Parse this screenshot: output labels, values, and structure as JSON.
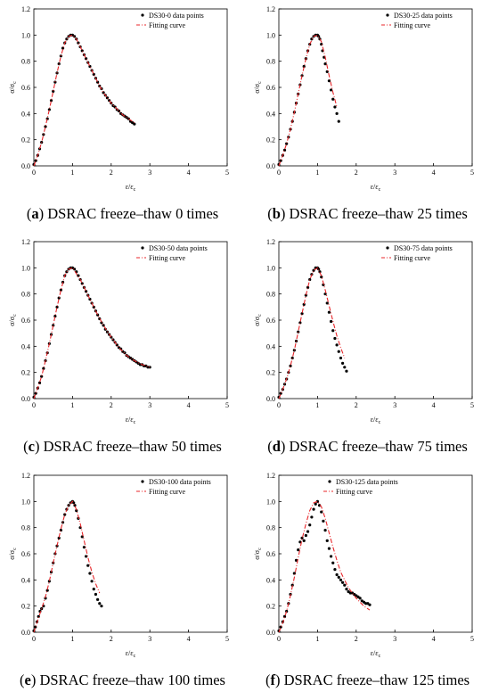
{
  "chart_data": [
    {
      "id": "a",
      "type": "scatter",
      "caption_letter": "a",
      "caption_text": "DSRAC freeze–thaw 0 times",
      "xlabel": "ε/ε",
      "xlabel_sub": "c",
      "ylabel": "σ/σ",
      "ylabel_sub": "c",
      "xlim": [
        0,
        5
      ],
      "ylim": [
        0,
        1.2
      ],
      "xticks": [
        "0",
        "1",
        "2",
        "3",
        "4",
        "5"
      ],
      "yticks": [
        "0.0",
        "0.2",
        "0.4",
        "0.6",
        "0.8",
        "1.0",
        "1.2"
      ],
      "legend": {
        "position": "top-right",
        "points_label": "DS30-0 data points",
        "curve_label": "Fitting curve"
      },
      "series": [
        {
          "name": "DS30-0 data points",
          "style": "points",
          "x": [
            0.0,
            0.05,
            0.1,
            0.15,
            0.2,
            0.25,
            0.3,
            0.35,
            0.4,
            0.45,
            0.5,
            0.55,
            0.6,
            0.65,
            0.7,
            0.75,
            0.8,
            0.85,
            0.9,
            0.95,
            1.0,
            1.05,
            1.1,
            1.15,
            1.2,
            1.25,
            1.3,
            1.35,
            1.4,
            1.45,
            1.5,
            1.55,
            1.6,
            1.65,
            1.7,
            1.75,
            1.8,
            1.85,
            1.9,
            1.95,
            2.0,
            2.05,
            2.1,
            2.15,
            2.2,
            2.25,
            2.3,
            2.35,
            2.4,
            2.45,
            2.5,
            2.55,
            2.6
          ],
          "y": [
            0.01,
            0.04,
            0.08,
            0.13,
            0.18,
            0.24,
            0.3,
            0.36,
            0.43,
            0.5,
            0.57,
            0.64,
            0.71,
            0.78,
            0.84,
            0.9,
            0.94,
            0.97,
            0.99,
            1.0,
            1.0,
            0.99,
            0.97,
            0.94,
            0.91,
            0.88,
            0.85,
            0.82,
            0.79,
            0.76,
            0.73,
            0.7,
            0.67,
            0.64,
            0.61,
            0.59,
            0.56,
            0.54,
            0.52,
            0.5,
            0.48,
            0.46,
            0.45,
            0.43,
            0.42,
            0.4,
            0.39,
            0.38,
            0.37,
            0.36,
            0.34,
            0.33,
            0.32
          ]
        },
        {
          "name": "Fitting curve",
          "style": "line",
          "x": [
            0.0,
            0.1,
            0.2,
            0.3,
            0.4,
            0.5,
            0.6,
            0.7,
            0.8,
            0.9,
            1.0,
            1.1,
            1.2,
            1.3,
            1.4,
            1.5,
            1.6,
            1.7,
            1.8,
            1.9,
            2.0,
            2.1,
            2.2,
            2.3,
            2.4,
            2.5,
            2.6
          ],
          "y": [
            0.0,
            0.08,
            0.18,
            0.3,
            0.43,
            0.57,
            0.71,
            0.84,
            0.94,
            0.99,
            1.0,
            0.97,
            0.91,
            0.85,
            0.79,
            0.73,
            0.67,
            0.61,
            0.56,
            0.52,
            0.48,
            0.45,
            0.42,
            0.39,
            0.37,
            0.35,
            0.33
          ]
        }
      ]
    },
    {
      "id": "b",
      "type": "scatter",
      "caption_letter": "b",
      "caption_text": "DSRAC freeze–thaw 25 times",
      "xlabel": "ε/ε",
      "xlabel_sub": "c",
      "ylabel": "σ/σ",
      "ylabel_sub": "c",
      "xlim": [
        0,
        5
      ],
      "ylim": [
        0,
        1.2
      ],
      "xticks": [
        "0",
        "1",
        "2",
        "3",
        "4",
        "5"
      ],
      "yticks": [
        "0.0",
        "0.2",
        "0.4",
        "0.6",
        "0.8",
        "1.0",
        "1.2"
      ],
      "legend": {
        "position": "top-right",
        "points_label": "DS30-25 data points",
        "curve_label": "Fitting curve"
      },
      "series": [
        {
          "name": "DS30-25 data points",
          "style": "points",
          "x": [
            0.0,
            0.05,
            0.1,
            0.15,
            0.2,
            0.25,
            0.3,
            0.35,
            0.4,
            0.45,
            0.5,
            0.55,
            0.6,
            0.65,
            0.7,
            0.75,
            0.8,
            0.85,
            0.9,
            0.95,
            1.0,
            1.03,
            1.06,
            1.1,
            1.13,
            1.17,
            1.2,
            1.25,
            1.3,
            1.35,
            1.4,
            1.45,
            1.5,
            1.55
          ],
          "y": [
            0.01,
            0.04,
            0.08,
            0.12,
            0.17,
            0.22,
            0.28,
            0.34,
            0.41,
            0.48,
            0.55,
            0.62,
            0.69,
            0.76,
            0.82,
            0.88,
            0.93,
            0.97,
            0.99,
            1.0,
            1.0,
            0.99,
            0.97,
            0.93,
            0.88,
            0.83,
            0.78,
            0.72,
            0.65,
            0.58,
            0.51,
            0.45,
            0.4,
            0.34
          ]
        },
        {
          "name": "Fitting curve",
          "style": "line",
          "x": [
            0.0,
            0.1,
            0.2,
            0.3,
            0.4,
            0.5,
            0.6,
            0.7,
            0.8,
            0.9,
            1.0,
            1.1,
            1.2,
            1.3,
            1.4,
            1.5
          ],
          "y": [
            0.0,
            0.08,
            0.17,
            0.28,
            0.41,
            0.55,
            0.69,
            0.82,
            0.93,
            0.99,
            1.0,
            0.95,
            0.83,
            0.69,
            0.56,
            0.45
          ]
        }
      ]
    },
    {
      "id": "c",
      "type": "scatter",
      "caption_letter": "c",
      "caption_text": "DSRAC freeze–thaw 50 times",
      "xlabel": "ε/ε",
      "xlabel_sub": "c",
      "ylabel": "σ/σ",
      "ylabel_sub": "c",
      "xlim": [
        0,
        5
      ],
      "ylim": [
        0,
        1.2
      ],
      "xticks": [
        "0",
        "1",
        "2",
        "3",
        "4",
        "5"
      ],
      "yticks": [
        "0.0",
        "0.2",
        "0.4",
        "0.6",
        "0.8",
        "1.0",
        "1.2"
      ],
      "legend": {
        "position": "top-right",
        "points_label": "DS30-50 data points",
        "curve_label": "Fitting curve"
      },
      "series": [
        {
          "name": "DS30-50 data points",
          "style": "points",
          "x": [
            0.0,
            0.05,
            0.1,
            0.15,
            0.2,
            0.25,
            0.3,
            0.35,
            0.4,
            0.45,
            0.5,
            0.55,
            0.6,
            0.65,
            0.7,
            0.75,
            0.8,
            0.85,
            0.9,
            0.95,
            1.0,
            1.05,
            1.1,
            1.15,
            1.2,
            1.25,
            1.3,
            1.35,
            1.4,
            1.45,
            1.5,
            1.55,
            1.6,
            1.65,
            1.7,
            1.75,
            1.8,
            1.85,
            1.9,
            1.95,
            2.0,
            2.05,
            2.1,
            2.15,
            2.2,
            2.25,
            2.3,
            2.35,
            2.4,
            2.45,
            2.5,
            2.55,
            2.6,
            2.65,
            2.7,
            2.75,
            2.8,
            2.85,
            2.9,
            2.95,
            3.0
          ],
          "y": [
            0.01,
            0.04,
            0.08,
            0.12,
            0.17,
            0.23,
            0.29,
            0.35,
            0.42,
            0.49,
            0.56,
            0.63,
            0.7,
            0.77,
            0.83,
            0.89,
            0.94,
            0.97,
            0.99,
            1.0,
            1.0,
            0.99,
            0.97,
            0.94,
            0.91,
            0.88,
            0.85,
            0.82,
            0.79,
            0.76,
            0.73,
            0.7,
            0.67,
            0.64,
            0.61,
            0.58,
            0.56,
            0.53,
            0.51,
            0.49,
            0.47,
            0.45,
            0.43,
            0.41,
            0.39,
            0.38,
            0.36,
            0.35,
            0.33,
            0.32,
            0.31,
            0.3,
            0.29,
            0.28,
            0.27,
            0.26,
            0.26,
            0.25,
            0.25,
            0.24,
            0.24
          ]
        },
        {
          "name": "Fitting curve",
          "style": "line",
          "x": [
            0.0,
            0.1,
            0.2,
            0.3,
            0.4,
            0.5,
            0.6,
            0.7,
            0.8,
            0.9,
            1.0,
            1.2,
            1.4,
            1.6,
            1.8,
            2.0,
            2.2,
            2.4,
            2.6,
            2.8,
            3.0
          ],
          "y": [
            0.0,
            0.08,
            0.17,
            0.29,
            0.42,
            0.56,
            0.7,
            0.83,
            0.94,
            0.99,
            1.0,
            0.91,
            0.79,
            0.67,
            0.56,
            0.47,
            0.39,
            0.33,
            0.29,
            0.26,
            0.24
          ]
        }
      ]
    },
    {
      "id": "d",
      "type": "scatter",
      "caption_letter": "d",
      "caption_text": "DSRAC freeze–thaw 75 times",
      "xlabel": "ε/ε",
      "xlabel_sub": "c",
      "ylabel": "σ/σ",
      "ylabel_sub": "c",
      "xlim": [
        0,
        5
      ],
      "ylim": [
        0,
        1.2
      ],
      "xticks": [
        "0",
        "1",
        "2",
        "3",
        "4",
        "5"
      ],
      "yticks": [
        "0.0",
        "0.2",
        "0.4",
        "0.6",
        "0.8",
        "1.0",
        "1.2"
      ],
      "legend": {
        "position": "top-right",
        "points_label": "DS30-75 data points",
        "curve_label": "Fitting curve"
      },
      "series": [
        {
          "name": "DS30-75 data points",
          "style": "points",
          "x": [
            0.0,
            0.05,
            0.1,
            0.15,
            0.2,
            0.25,
            0.3,
            0.35,
            0.4,
            0.45,
            0.5,
            0.55,
            0.6,
            0.65,
            0.7,
            0.75,
            0.8,
            0.85,
            0.9,
            0.95,
            1.0,
            1.03,
            1.06,
            1.1,
            1.15,
            1.2,
            1.25,
            1.3,
            1.35,
            1.4,
            1.45,
            1.5,
            1.55,
            1.6,
            1.65,
            1.7,
            1.75
          ],
          "y": [
            0.01,
            0.04,
            0.07,
            0.11,
            0.15,
            0.2,
            0.25,
            0.31,
            0.37,
            0.44,
            0.51,
            0.58,
            0.65,
            0.72,
            0.79,
            0.85,
            0.91,
            0.95,
            0.98,
            1.0,
            1.0,
            0.99,
            0.97,
            0.93,
            0.87,
            0.8,
            0.73,
            0.66,
            0.59,
            0.52,
            0.46,
            0.41,
            0.36,
            0.31,
            0.27,
            0.24,
            0.21
          ]
        },
        {
          "name": "Fitting curve",
          "style": "line",
          "x": [
            0.0,
            0.1,
            0.2,
            0.3,
            0.4,
            0.5,
            0.6,
            0.7,
            0.8,
            0.9,
            1.0,
            1.1,
            1.2,
            1.3,
            1.4,
            1.5,
            1.6,
            1.7
          ],
          "y": [
            0.0,
            0.07,
            0.15,
            0.25,
            0.37,
            0.51,
            0.65,
            0.79,
            0.91,
            0.98,
            1.0,
            0.94,
            0.83,
            0.71,
            0.59,
            0.48,
            0.39,
            0.31
          ]
        }
      ]
    },
    {
      "id": "e",
      "type": "scatter",
      "caption_letter": "e",
      "caption_text": "DSRAC freeze–thaw 100 times",
      "xlabel": "ε/ε",
      "xlabel_sub": "c",
      "ylabel": "σ/σ",
      "ylabel_sub": "c",
      "xlim": [
        0,
        5
      ],
      "ylim": [
        0,
        1.2
      ],
      "xticks": [
        "0",
        "1",
        "2",
        "3",
        "4",
        "5"
      ],
      "yticks": [
        "0.0",
        "0.2",
        "0.4",
        "0.6",
        "0.8",
        "1.0",
        "1.2"
      ],
      "legend": {
        "position": "top-right",
        "points_label": "DS30-100 data points",
        "curve_label": "Fitting curve"
      },
      "series": [
        {
          "name": "DS30-100 data points",
          "style": "points",
          "x": [
            0.0,
            0.04,
            0.08,
            0.12,
            0.16,
            0.2,
            0.25,
            0.3,
            0.35,
            0.4,
            0.45,
            0.5,
            0.55,
            0.6,
            0.65,
            0.7,
            0.75,
            0.8,
            0.85,
            0.9,
            0.95,
            1.0,
            1.03,
            1.06,
            1.1,
            1.15,
            1.2,
            1.25,
            1.3,
            1.35,
            1.4,
            1.45,
            1.5,
            1.55,
            1.6,
            1.65,
            1.7,
            1.75
          ],
          "y": [
            0.01,
            0.04,
            0.08,
            0.12,
            0.16,
            0.18,
            0.2,
            0.26,
            0.32,
            0.39,
            0.46,
            0.53,
            0.6,
            0.66,
            0.72,
            0.78,
            0.84,
            0.9,
            0.94,
            0.97,
            0.99,
            1.0,
            0.99,
            0.97,
            0.93,
            0.87,
            0.8,
            0.73,
            0.65,
            0.58,
            0.51,
            0.45,
            0.39,
            0.33,
            0.29,
            0.25,
            0.22,
            0.2
          ]
        },
        {
          "name": "Fitting curve",
          "style": "line",
          "x": [
            0.0,
            0.1,
            0.2,
            0.3,
            0.4,
            0.5,
            0.6,
            0.7,
            0.8,
            0.9,
            1.0,
            1.1,
            1.2,
            1.3,
            1.4,
            1.5,
            1.6,
            1.7
          ],
          "y": [
            0.0,
            0.09,
            0.18,
            0.27,
            0.39,
            0.53,
            0.66,
            0.79,
            0.9,
            0.97,
            1.0,
            0.94,
            0.83,
            0.7,
            0.57,
            0.46,
            0.37,
            0.3
          ]
        }
      ]
    },
    {
      "id": "f",
      "type": "scatter",
      "caption_letter": "f",
      "caption_text": "DSRAC freeze–thaw 125 times",
      "xlabel": "ε/ε",
      "xlabel_sub": "c",
      "ylabel": "σ/σ",
      "ylabel_sub": "c",
      "xlim": [
        0,
        5
      ],
      "ylim": [
        0,
        1.2
      ],
      "xticks": [
        "0",
        "1",
        "2",
        "3",
        "4",
        "5"
      ],
      "yticks": [
        "0.0",
        "0.2",
        "0.4",
        "0.6",
        "0.8",
        "1.0",
        "1.2"
      ],
      "legend": {
        "position": "top-left",
        "points_label": "DS30-125 data points",
        "curve_label": "Fitting curve"
      },
      "series": [
        {
          "name": "DS30-125 data points",
          "style": "points",
          "x": [
            0.0,
            0.05,
            0.1,
            0.15,
            0.2,
            0.25,
            0.3,
            0.35,
            0.4,
            0.45,
            0.5,
            0.55,
            0.6,
            0.65,
            0.7,
            0.75,
            0.8,
            0.85,
            0.9,
            0.95,
            1.0,
            1.05,
            1.1,
            1.15,
            1.2,
            1.25,
            1.3,
            1.35,
            1.4,
            1.45,
            1.5,
            1.55,
            1.6,
            1.65,
            1.7,
            1.75,
            1.8,
            1.85,
            1.9,
            1.95,
            2.0,
            2.05,
            2.1,
            2.15,
            2.2,
            2.25,
            2.3,
            2.35
          ],
          "y": [
            0.01,
            0.04,
            0.08,
            0.12,
            0.16,
            0.22,
            0.29,
            0.36,
            0.45,
            0.55,
            0.63,
            0.69,
            0.72,
            0.7,
            0.74,
            0.77,
            0.82,
            0.88,
            0.94,
            0.98,
            1.0,
            0.97,
            0.92,
            0.85,
            0.78,
            0.7,
            0.64,
            0.58,
            0.53,
            0.48,
            0.44,
            0.42,
            0.4,
            0.38,
            0.36,
            0.33,
            0.31,
            0.3,
            0.3,
            0.29,
            0.28,
            0.27,
            0.26,
            0.24,
            0.23,
            0.22,
            0.22,
            0.21
          ]
        },
        {
          "name": "Fitting curve",
          "style": "line",
          "x": [
            0.0,
            0.1,
            0.2,
            0.3,
            0.4,
            0.5,
            0.6,
            0.7,
            0.8,
            0.9,
            1.0,
            1.1,
            1.2,
            1.3,
            1.4,
            1.5,
            1.6,
            1.8,
            2.0,
            2.2,
            2.35
          ],
          "y": [
            0.0,
            0.07,
            0.16,
            0.28,
            0.42,
            0.57,
            0.71,
            0.83,
            0.93,
            0.99,
            1.0,
            0.96,
            0.87,
            0.76,
            0.65,
            0.55,
            0.46,
            0.34,
            0.26,
            0.2,
            0.17
          ]
        }
      ]
    }
  ]
}
